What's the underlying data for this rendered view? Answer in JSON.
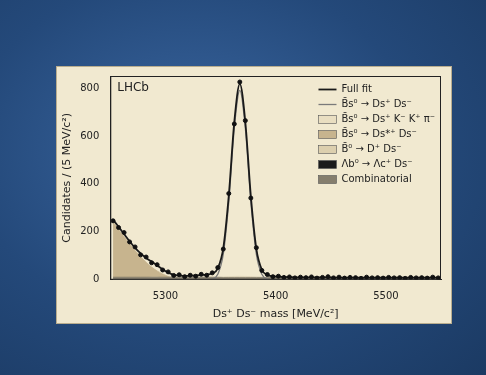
{
  "chart_data": {
    "type": "line",
    "x_label": "Ds⁺ Ds⁻ mass [MeV/c²]",
    "y_label": "Candidates / (5 MeV/c²)",
    "annotations": [
      "LHCb"
    ],
    "x": [
      5252.5,
      5257.5,
      5262.5,
      5267.5,
      5272.5,
      5277.5,
      5282.5,
      5287.5,
      5292.5,
      5297.5,
      5302.5,
      5307.5,
      5312.5,
      5317.5,
      5322.5,
      5327.5,
      5332.5,
      5337.5,
      5342.5,
      5347.5,
      5352.5,
      5357.5,
      5362.5,
      5367.5,
      5372.5,
      5377.5,
      5382.5,
      5387.5,
      5392.5,
      5397.5,
      5402.5,
      5407.5,
      5412.5,
      5417.5,
      5422.5,
      5427.5,
      5432.5,
      5437.5,
      5442.5,
      5447.5,
      5452.5,
      5457.5,
      5462.5,
      5467.5,
      5472.5,
      5477.5,
      5482.5,
      5487.5,
      5492.5,
      5497.5,
      5502.5,
      5507.5,
      5512.5,
      5517.5,
      5522.5,
      5527.5,
      5532.5,
      5537.5,
      5542.5,
      5547.5
    ],
    "xlim": [
      5250,
      5550
    ],
    "xticks": [
      5300,
      5400,
      5500
    ],
    "ylim": [
      0,
      850
    ],
    "yticks": [
      0,
      200,
      400,
      600,
      800
    ],
    "grid": false,
    "legend": "top right",
    "data_points": {
      "color": "#111111",
      "marker": "circle",
      "values": [
        246,
        218,
        197,
        158,
        137,
        104,
        95,
        71,
        63,
        41,
        33,
        18,
        21,
        13,
        19,
        15,
        23,
        19,
        29,
        51,
        128,
        360,
        650,
        825,
        664,
        341,
        134,
        39,
        22,
        13,
        15,
        10,
        12,
        8,
        11,
        9,
        12,
        7,
        10,
        13,
        8,
        11,
        7,
        10,
        9,
        6,
        11,
        8,
        9,
        7,
        10,
        8,
        9,
        6,
        10,
        8,
        9,
        7,
        11,
        8
      ]
    },
    "series": [
      {
        "name": "Full fit",
        "type": "line",
        "line_style": "solid",
        "color": "#1a1a1a",
        "values": [
          251,
          221,
          191,
          161,
          133,
          110,
          91,
          76,
          60,
          44,
          30,
          21,
          18,
          16,
          17,
          18,
          20,
          22,
          26,
          48,
          132,
          352,
          659,
          817,
          658,
          349,
          129,
          42,
          20,
          15,
          13,
          12,
          11,
          10,
          10,
          10,
          10,
          10,
          10,
          10,
          9,
          9,
          9,
          9,
          9,
          9,
          9,
          9,
          9,
          9,
          9,
          9,
          9,
          9,
          9,
          9,
          9,
          9,
          9,
          9
        ]
      },
      {
        "name": "B̄s⁰ → Ds⁺ Ds⁻",
        "type": "line",
        "line_style": "solid",
        "color": "#7a7a7a",
        "values": [
          0,
          0,
          0,
          0,
          0,
          0,
          0,
          0,
          0,
          0,
          0,
          0,
          0,
          0,
          0,
          0,
          0,
          0,
          3,
          23,
          107,
          325,
          632,
          790,
          632,
          325,
          107,
          23,
          3,
          0,
          0,
          0,
          0,
          0,
          0,
          0,
          0,
          0,
          0,
          0,
          0,
          0,
          0,
          0,
          0,
          0,
          0,
          0,
          0,
          0,
          0,
          0,
          0,
          0,
          0,
          0,
          0,
          0,
          0,
          0
        ]
      },
      {
        "name": "B̄s⁰ → Ds⁺ K⁻ K⁺ π⁻",
        "type": "area",
        "color": "#e9dec1",
        "values": [
          0,
          0,
          0,
          0,
          0,
          0,
          0,
          0,
          0,
          0,
          0,
          0,
          0,
          0,
          1,
          2,
          3,
          5,
          7,
          9,
          11,
          13,
          14,
          15,
          14,
          13,
          11,
          9,
          7,
          5,
          3,
          2,
          1,
          0,
          0,
          0,
          0,
          0,
          0,
          0,
          0,
          0,
          0,
          0,
          0,
          0,
          0,
          0,
          0,
          0,
          0,
          0,
          0,
          0,
          0,
          0,
          0,
          0,
          0,
          0
        ]
      },
      {
        "name": "B̄s⁰ → Ds*⁺ Ds⁻",
        "type": "area",
        "color": "#c7b48e",
        "values": [
          240,
          210,
          180,
          150,
          122,
          96,
          73,
          53,
          37,
          24,
          14,
          7,
          3,
          1,
          0,
          0,
          0,
          0,
          0,
          0,
          0,
          0,
          0,
          0,
          0,
          0,
          0,
          0,
          0,
          0,
          0,
          0,
          0,
          0,
          0,
          0,
          0,
          0,
          0,
          0,
          0,
          0,
          0,
          0,
          0,
          0,
          0,
          0,
          0,
          0,
          0,
          0,
          0,
          0,
          0,
          0,
          0,
          0,
          0,
          0
        ]
      },
      {
        "name": "B̄⁰ → D⁺ Ds⁻",
        "type": "area",
        "color": "#dccfae",
        "values": [
          0,
          0,
          0,
          0,
          0,
          3,
          7,
          11,
          11,
          7,
          3,
          0,
          0,
          0,
          0,
          0,
          0,
          0,
          0,
          0,
          0,
          0,
          0,
          0,
          0,
          0,
          0,
          0,
          0,
          0,
          0,
          0,
          0,
          0,
          0,
          0,
          0,
          0,
          0,
          0,
          0,
          0,
          0,
          0,
          0,
          0,
          0,
          0,
          0,
          0,
          0,
          0,
          0,
          0,
          0,
          0,
          0,
          0,
          0,
          0
        ]
      },
      {
        "name": "Λb⁰ → Λc⁺ Ds⁻",
        "type": "area",
        "color": "#1b1b1b",
        "values": [
          0,
          0,
          0,
          0,
          0,
          0,
          0,
          1,
          1,
          2,
          2,
          3,
          4,
          4,
          5,
          5,
          6,
          6,
          5,
          5,
          4,
          4,
          3,
          2,
          2,
          1,
          1,
          0,
          0,
          0,
          0,
          0,
          0,
          0,
          0,
          0,
          0,
          0,
          0,
          0,
          0,
          0,
          0,
          0,
          0,
          0,
          0,
          0,
          0,
          0,
          0,
          0,
          0,
          0,
          0,
          0,
          0,
          0,
          0,
          0
        ]
      },
      {
        "name": "Combinatorial",
        "type": "area",
        "color": "#857e6d",
        "values": [
          11,
          11,
          11,
          11,
          11,
          11,
          11,
          11,
          11,
          11,
          11,
          11,
          11,
          11,
          11,
          11,
          11,
          11,
          11,
          11,
          10,
          10,
          10,
          10,
          10,
          10,
          10,
          10,
          10,
          10,
          10,
          10,
          10,
          10,
          10,
          10,
          10,
          10,
          10,
          10,
          9,
          9,
          9,
          9,
          9,
          9,
          9,
          9,
          9,
          9,
          9,
          9,
          9,
          9,
          9,
          9,
          9,
          9,
          9,
          9
        ]
      }
    ]
  }
}
